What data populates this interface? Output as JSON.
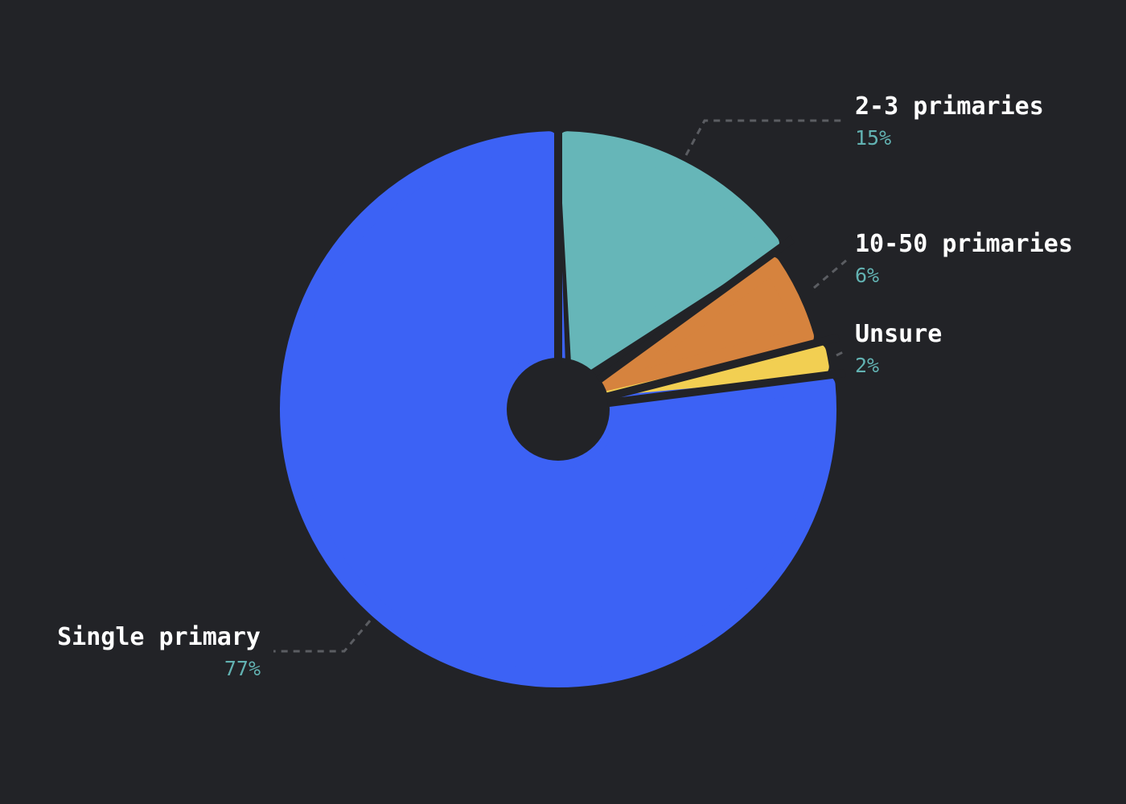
{
  "chart_data": {
    "type": "pie",
    "style": "donut",
    "title": "",
    "categories": [
      "Single primary",
      "2-3 primaries",
      "10-50 primaries",
      "Unsure"
    ],
    "values": [
      77,
      15,
      6,
      2
    ],
    "value_labels": [
      "77%",
      "15%",
      "6%",
      "2%"
    ],
    "colors": [
      "#3c62f5",
      "#66b6b8",
      "#d6833e",
      "#f2cf52"
    ],
    "percent_label_color": "#62b2b2",
    "background": "#222327",
    "legend": "none",
    "labels_placement": "outside-with-dashed-leaders"
  }
}
